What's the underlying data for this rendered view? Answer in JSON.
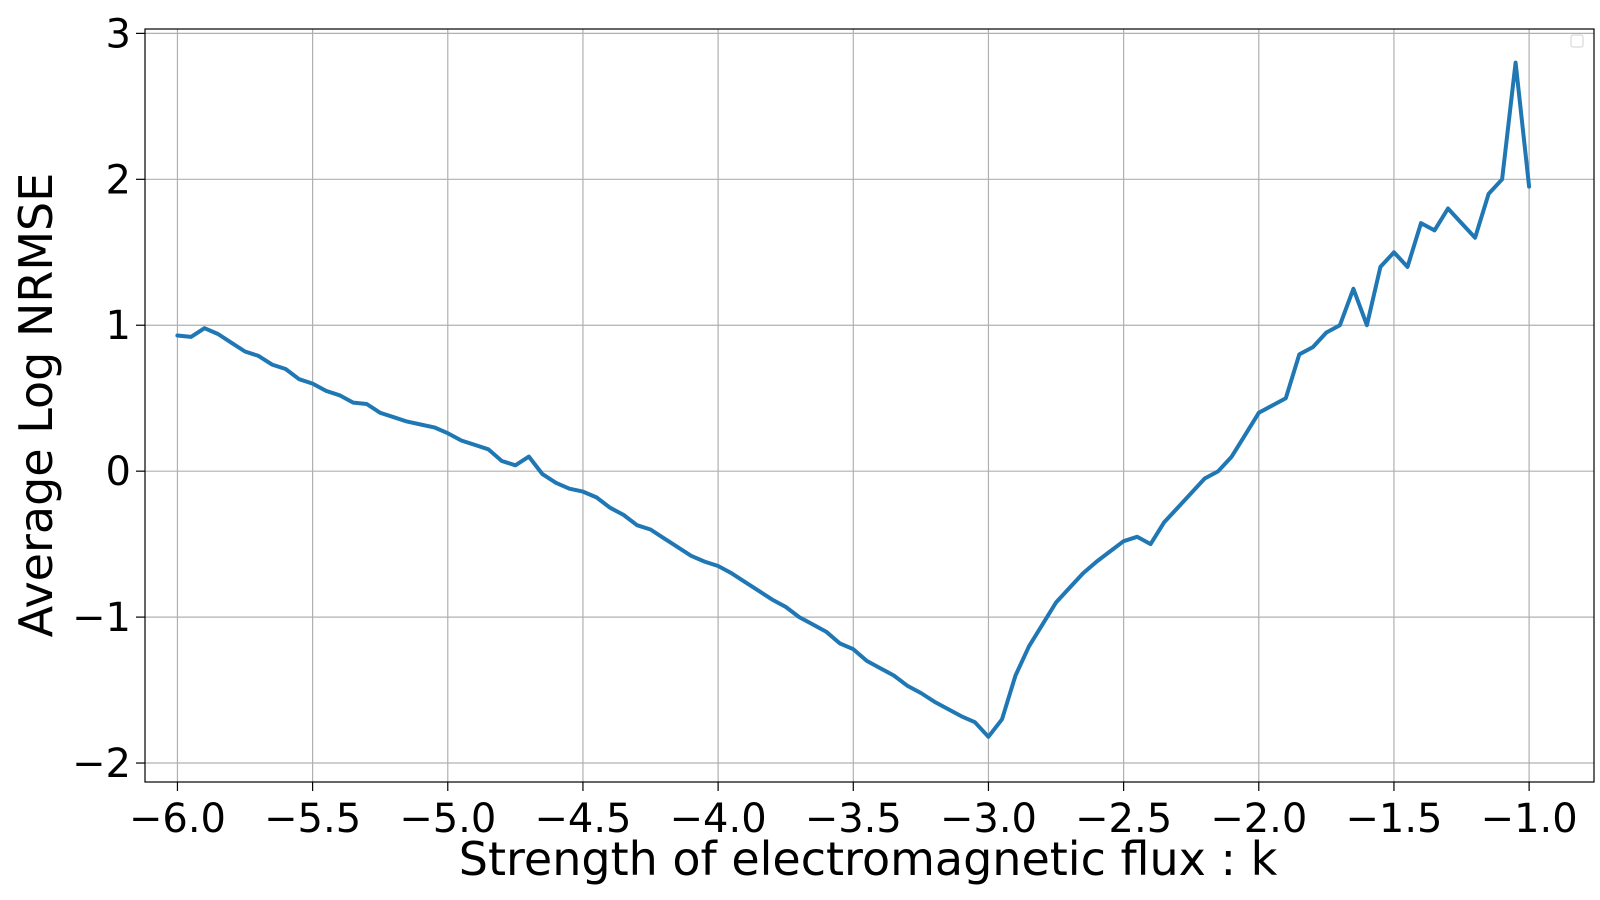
{
  "chart_data": {
    "type": "line",
    "title": "",
    "xlabel": "Strength of electromagnetic flux : k",
    "ylabel": "Average Log NRMSE",
    "xlim": [
      -6.0,
      -1.0
    ],
    "ylim": [
      -2.0,
      3.0
    ],
    "xticks": [
      -6.0,
      -5.5,
      -5.0,
      -4.5,
      -4.0,
      -3.5,
      -3.0,
      -2.5,
      -2.0,
      -1.5,
      -1.0
    ],
    "xtick_labels": [
      "−6.0",
      "−5.5",
      "−5.0",
      "−4.5",
      "−4.0",
      "−3.5",
      "−3.0",
      "−2.5",
      "−2.0",
      "−1.5",
      "−1.0"
    ],
    "yticks": [
      -2,
      -1,
      0,
      1,
      2,
      3
    ],
    "ytick_labels": [
      "−2",
      "−1",
      "0",
      "1",
      "2",
      "3"
    ],
    "grid": true,
    "legend": "upper-right (empty)",
    "line_color": "#1f77b4",
    "series": [
      {
        "x": [
          -6.0,
          -5.95,
          -5.9,
          -5.85,
          -5.8,
          -5.75,
          -5.7,
          -5.65,
          -5.6,
          -5.55,
          -5.5,
          -5.45,
          -5.4,
          -5.35,
          -5.3,
          -5.25,
          -5.2,
          -5.15,
          -5.1,
          -5.05,
          -5.0,
          -4.95,
          -4.9,
          -4.85,
          -4.8,
          -4.75,
          -4.7,
          -4.65,
          -4.6,
          -4.55,
          -4.5,
          -4.45,
          -4.4,
          -4.35,
          -4.3,
          -4.25,
          -4.2,
          -4.15,
          -4.1,
          -4.05,
          -4.0,
          -3.95,
          -3.9,
          -3.85,
          -3.8,
          -3.75,
          -3.7,
          -3.65,
          -3.6,
          -3.55,
          -3.5,
          -3.45,
          -3.4,
          -3.35,
          -3.3,
          -3.25,
          -3.2,
          -3.15,
          -3.1,
          -3.05,
          -3.0,
          -2.95,
          -2.9,
          -2.85,
          -2.8,
          -2.75,
          -2.7,
          -2.65,
          -2.6,
          -2.55,
          -2.5,
          -2.45,
          -2.4,
          -2.35,
          -2.3,
          -2.25,
          -2.2,
          -2.15,
          -2.1,
          -2.05,
          -2.0,
          -1.95,
          -1.9,
          -1.85,
          -1.8,
          -1.75,
          -1.7,
          -1.65,
          -1.6,
          -1.55,
          -1.5,
          -1.45,
          -1.4,
          -1.35,
          -1.3,
          -1.25,
          -1.2,
          -1.15,
          -1.1,
          -1.05,
          -1.0
        ],
        "values": [
          0.93,
          0.92,
          0.98,
          0.94,
          0.88,
          0.82,
          0.79,
          0.73,
          0.7,
          0.63,
          0.6,
          0.55,
          0.52,
          0.47,
          0.46,
          0.4,
          0.37,
          0.34,
          0.32,
          0.3,
          0.26,
          0.21,
          0.18,
          0.15,
          0.07,
          0.04,
          0.1,
          -0.02,
          -0.08,
          -0.12,
          -0.14,
          -0.18,
          -0.25,
          -0.3,
          -0.37,
          -0.4,
          -0.46,
          -0.52,
          -0.58,
          -0.62,
          -0.65,
          -0.7,
          -0.76,
          -0.82,
          -0.88,
          -0.93,
          -1.0,
          -1.05,
          -1.1,
          -1.18,
          -1.22,
          -1.3,
          -1.35,
          -1.4,
          -1.47,
          -1.52,
          -1.58,
          -1.63,
          -1.68,
          -1.72,
          -1.82,
          -1.7,
          -1.4,
          -1.2,
          -1.05,
          -0.9,
          -0.8,
          -0.7,
          -0.62,
          -0.55,
          -0.48,
          -0.45,
          -0.5,
          -0.35,
          -0.25,
          -0.15,
          -0.05,
          0.0,
          0.1,
          0.25,
          0.4,
          0.45,
          0.5,
          0.8,
          0.85,
          0.95,
          1.0,
          1.25,
          1.0,
          1.4,
          1.5,
          1.4,
          1.7,
          1.65,
          1.8,
          1.7,
          1.6,
          1.9,
          2.0,
          2.8,
          1.95
        ]
      }
    ]
  }
}
